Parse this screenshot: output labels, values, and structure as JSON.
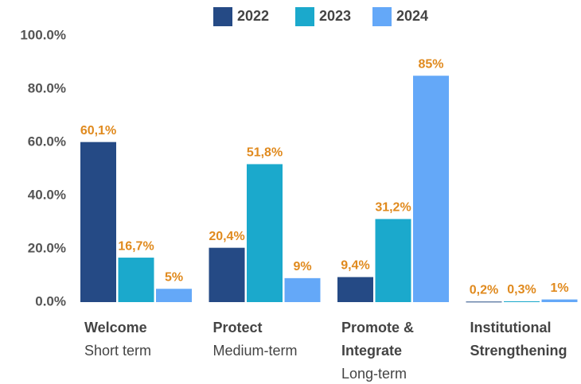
{
  "chart_data": {
    "type": "bar",
    "categories": [
      "Welcome",
      "Protect",
      "Promote & Integrate",
      "Institutional Strengthening"
    ],
    "category_subtitles": [
      "Short term",
      "Medium-term",
      "Long-term",
      null
    ],
    "series": [
      {
        "name": "2022",
        "color": "#254a85",
        "values": [
          60.1,
          20.4,
          9.4,
          0.2
        ],
        "value_labels": [
          "60,1%",
          "20,4%",
          "9,4%",
          "0,2%"
        ]
      },
      {
        "name": "2023",
        "color": "#1ba9cc",
        "values": [
          16.7,
          51.8,
          31.2,
          0.3
        ],
        "value_labels": [
          "16,7%",
          "51,8%",
          "31,2%",
          "0,3%"
        ]
      },
      {
        "name": "2024",
        "color": "#64a8f8",
        "values": [
          5,
          9,
          85,
          1
        ],
        "value_labels": [
          "5%",
          "9%",
          "85%",
          "1%"
        ]
      }
    ],
    "ylim": [
      0,
      100
    ],
    "yticks": [
      {
        "value": 0,
        "label": "0.0%"
      },
      {
        "value": 20,
        "label": "20.0%"
      },
      {
        "value": 40,
        "label": "40.0%"
      },
      {
        "value": 60,
        "label": "60.0%"
      },
      {
        "value": 80,
        "label": "80.0%"
      },
      {
        "value": 100,
        "label": "100.0%"
      }
    ],
    "legend": "top",
    "grid": false,
    "value_label_color": "#e08a1e"
  }
}
